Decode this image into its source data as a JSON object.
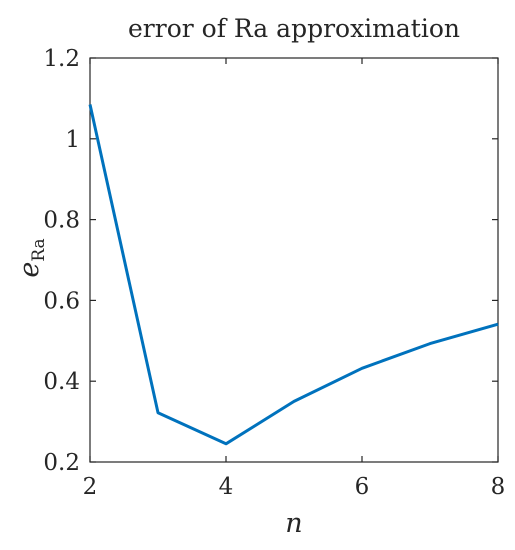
{
  "chart_data": {
    "type": "line",
    "title": "error of Ra approximation",
    "xlabel": "n",
    "ylabel": {
      "main": "e",
      "subscript": "Ra"
    },
    "xlim": [
      2,
      8
    ],
    "ylim": [
      0.2,
      1.2
    ],
    "xticks": [
      2,
      4,
      6,
      8
    ],
    "yticks": [
      0.2,
      0.4,
      0.6,
      0.8,
      1,
      1.2
    ],
    "xtick_labels": [
      "2",
      "4",
      "6",
      "8"
    ],
    "ytick_labels": [
      "0.2",
      "0.4",
      "0.6",
      "0.8",
      "1",
      "1.2"
    ],
    "grid": false,
    "series": [
      {
        "color": "#0072BD",
        "x": [
          2,
          3,
          4,
          5,
          6,
          7,
          8
        ],
        "y": [
          1.085,
          0.322,
          0.245,
          0.35,
          0.432,
          0.493,
          0.541
        ]
      }
    ]
  }
}
